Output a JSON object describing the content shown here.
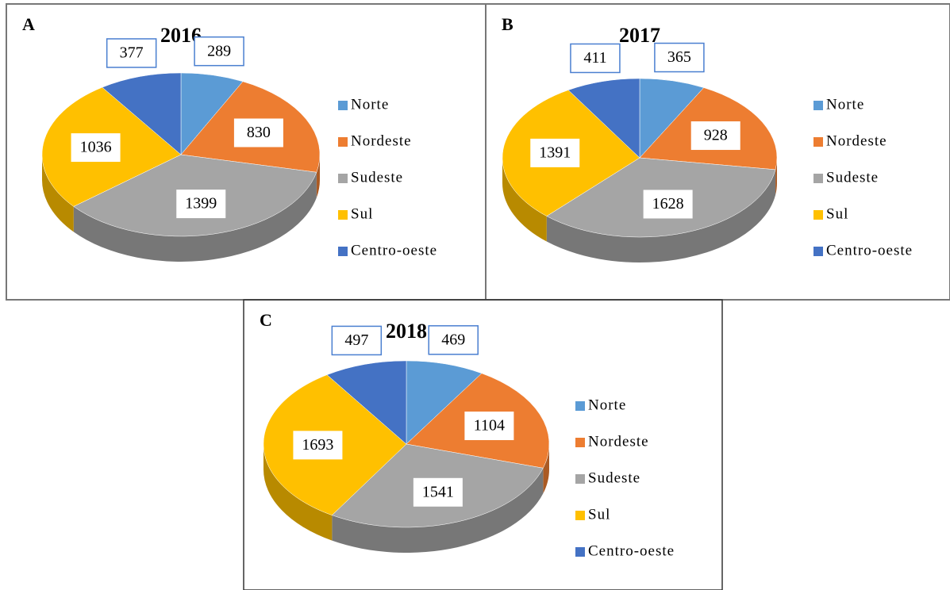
{
  "chart_data": [
    {
      "type": "pie3d",
      "label": "A",
      "title": "2016",
      "categories": [
        "Norte",
        "Nordeste",
        "Sudeste",
        "Sul",
        "Centro-oeste"
      ],
      "values": [
        289,
        830,
        1399,
        1036,
        377
      ],
      "colors": [
        "#5b9bd5",
        "#ed7d31",
        "#a5a5a5",
        "#ffc000",
        "#4472c4"
      ]
    },
    {
      "type": "pie3d",
      "label": "B",
      "title": "2017",
      "categories": [
        "Norte",
        "Nordeste",
        "Sudeste",
        "Sul",
        "Centro-oeste"
      ],
      "values": [
        365,
        928,
        1628,
        1391,
        411
      ],
      "colors": [
        "#5b9bd5",
        "#ed7d31",
        "#a5a5a5",
        "#ffc000",
        "#4472c4"
      ]
    },
    {
      "type": "pie3d",
      "label": "C",
      "title": "2018",
      "categories": [
        "Norte",
        "Nordeste",
        "Sudeste",
        "Sul",
        "Centro-oeste"
      ],
      "values": [
        469,
        1104,
        1541,
        1693,
        497
      ],
      "colors": [
        "#5b9bd5",
        "#ed7d31",
        "#a5a5a5",
        "#ffc000",
        "#4472c4"
      ]
    }
  ]
}
